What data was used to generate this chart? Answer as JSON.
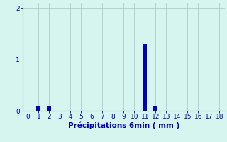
{
  "x_values": [
    0,
    1,
    2,
    3,
    4,
    5,
    6,
    7,
    8,
    9,
    10,
    11,
    12,
    13,
    14,
    15,
    16,
    17,
    18
  ],
  "bar_heights": [
    0,
    0.1,
    0.1,
    0,
    0,
    0,
    0,
    0,
    0,
    0,
    0,
    1.3,
    0.1,
    0,
    0,
    0,
    0,
    0,
    0
  ],
  "bar_color": "#0000bb",
  "background_color": "#d6f5ef",
  "grid_color": "#aacfc8",
  "spine_color": "#888888",
  "xlabel": "Précipitations 6min ( mm )",
  "xlabel_color": "#0000bb",
  "xlabel_fontsize": 7.5,
  "tick_color": "#0000bb",
  "tick_fontsize": 6.5,
  "ylim": [
    0,
    2.1
  ],
  "xlim": [
    -0.5,
    18.5
  ],
  "yticks": [
    0,
    1,
    2
  ],
  "bar_width": 0.4
}
